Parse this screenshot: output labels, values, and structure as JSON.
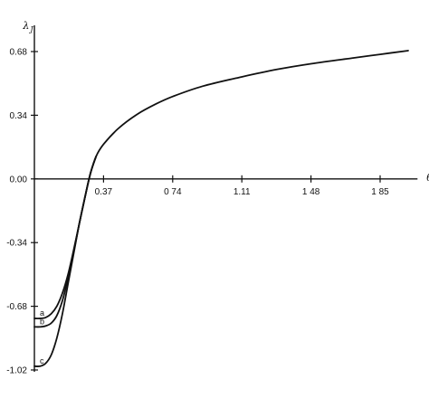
{
  "chart_data": {
    "type": "line",
    "title": "",
    "xlabel": "θ_J",
    "ylabel": "λ_J",
    "xlim": [
      0,
      2.05
    ],
    "ylim": [
      -1.02,
      0.82
    ],
    "x_ticks": [
      {
        "value": 0.37,
        "label": "0.37"
      },
      {
        "value": 0.74,
        "label": "0 74"
      },
      {
        "value": 1.11,
        "label": "1.11"
      },
      {
        "value": 1.48,
        "label": "1 48"
      },
      {
        "value": 1.85,
        "label": "1 85"
      }
    ],
    "y_ticks": [
      {
        "value": 0.68,
        "label": "0.68"
      },
      {
        "value": 0.34,
        "label": "0.34"
      },
      {
        "value": 0.0,
        "label": "0.00"
      },
      {
        "value": -0.34,
        "label": "-0.34"
      },
      {
        "value": -0.68,
        "label": "-0.68"
      },
      {
        "value": -1.02,
        "label": "-1.02"
      }
    ],
    "grid": false,
    "series": [
      {
        "name": "a",
        "x": [
          0.0,
          0.03,
          0.06,
          0.09,
          0.12,
          0.15,
          0.18,
          0.21,
          0.24,
          0.27,
          0.3,
          0.33
        ],
        "y": [
          -0.745,
          -0.745,
          -0.74,
          -0.72,
          -0.68,
          -0.61,
          -0.51,
          -0.38,
          -0.24,
          -0.1,
          0.03,
          0.12
        ]
      },
      {
        "name": "b",
        "x": [
          0.0,
          0.03,
          0.06,
          0.09,
          0.12,
          0.15,
          0.18,
          0.21,
          0.24,
          0.27,
          0.3,
          0.33
        ],
        "y": [
          -0.79,
          -0.79,
          -0.785,
          -0.77,
          -0.73,
          -0.65,
          -0.53,
          -0.39,
          -0.24,
          -0.1,
          0.03,
          0.12
        ]
      },
      {
        "name": "c",
        "x": [
          0.0,
          0.03,
          0.06,
          0.09,
          0.12,
          0.15,
          0.18,
          0.21,
          0.24,
          0.27,
          0.3,
          0.33,
          0.37,
          0.45,
          0.55,
          0.65,
          0.74,
          0.9,
          1.11,
          1.3,
          1.48,
          1.7,
          1.85,
          2.0
        ],
        "y": [
          -1.0,
          -1.0,
          -0.985,
          -0.94,
          -0.85,
          -0.72,
          -0.56,
          -0.4,
          -0.24,
          -0.1,
          0.03,
          0.12,
          0.185,
          0.27,
          0.345,
          0.4,
          0.44,
          0.495,
          0.545,
          0.585,
          0.615,
          0.645,
          0.665,
          0.685
        ]
      }
    ]
  }
}
